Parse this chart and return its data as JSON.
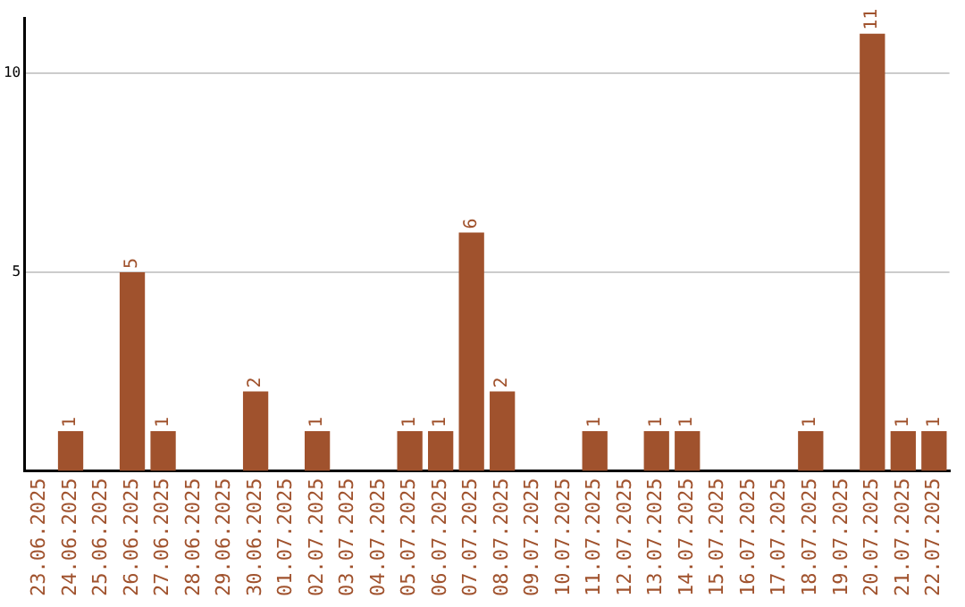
{
  "chart_data": {
    "type": "bar",
    "categories": [
      "23.06.2025",
      "24.06.2025",
      "25.06.2025",
      "26.06.2025",
      "27.06.2025",
      "28.06.2025",
      "29.06.2025",
      "30.06.2025",
      "01.07.2025",
      "02.07.2025",
      "03.07.2025",
      "04.07.2025",
      "05.07.2025",
      "06.07.2025",
      "07.07.2025",
      "08.07.2025",
      "09.07.2025",
      "10.07.2025",
      "11.07.2025",
      "12.07.2025",
      "13.07.2025",
      "14.07.2025",
      "15.07.2025",
      "16.07.2025",
      "17.07.2025",
      "18.07.2025",
      "19.07.2025",
      "20.07.2025",
      "21.07.2025",
      "22.07.2025"
    ],
    "values": [
      0,
      1,
      0,
      5,
      1,
      0,
      0,
      2,
      0,
      1,
      0,
      0,
      1,
      1,
      6,
      2,
      0,
      0,
      1,
      0,
      1,
      1,
      0,
      0,
      0,
      1,
      0,
      11,
      1,
      1
    ],
    "value_labels": [
      null,
      "1",
      null,
      "5",
      "1",
      null,
      null,
      "2",
      null,
      "1",
      null,
      null,
      "1",
      "1",
      "6",
      "2",
      null,
      null,
      "1",
      null,
      "1",
      "1",
      null,
      null,
      null,
      "1",
      null,
      "11",
      "1",
      "1"
    ],
    "color": "#a0522d",
    "ylim": [
      0,
      11.4
    ],
    "yticks": [
      5,
      10
    ],
    "grid": "y",
    "legend": false
  }
}
